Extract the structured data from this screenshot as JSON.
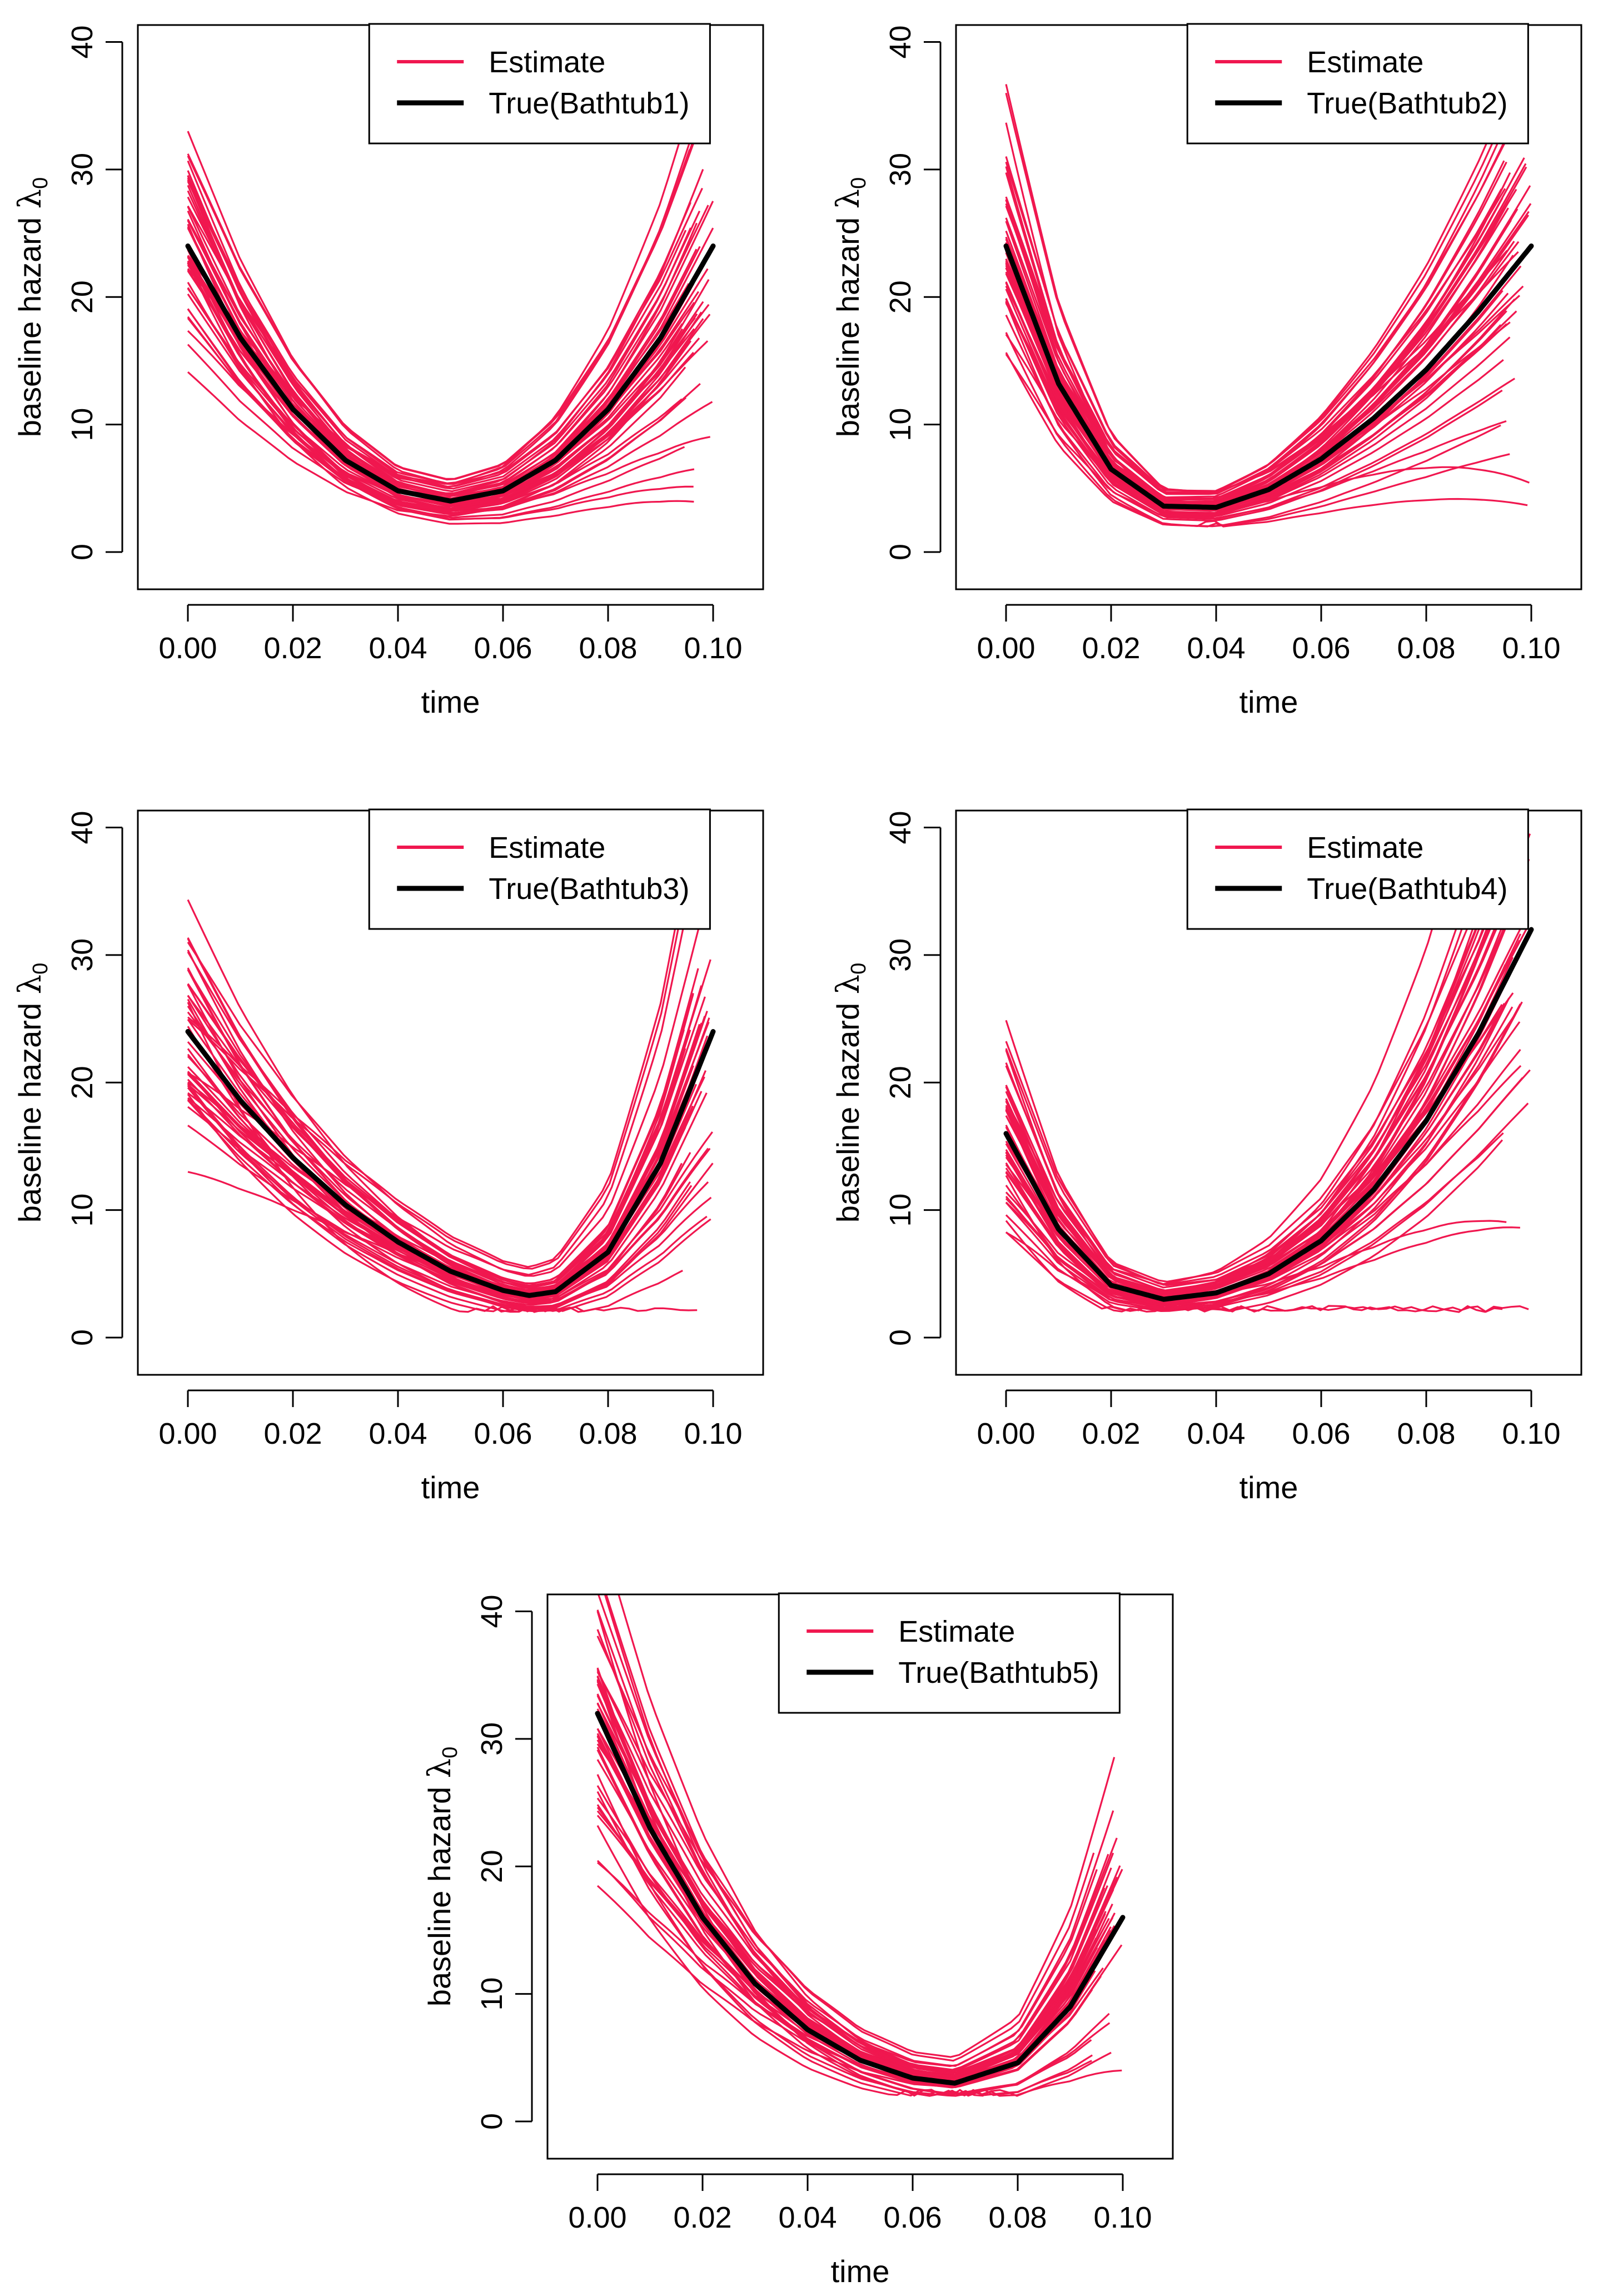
{
  "chart_data": [
    {
      "type": "line",
      "panel": "Bathtub1",
      "xlabel": "time",
      "ylabel": "baseline hazard",
      "ylabel_symbol": "λ",
      "ylabel_subscript": "0",
      "xlim": [
        0.0,
        0.1
      ],
      "ylim": [
        0,
        40
      ],
      "xticks": [
        "0.00",
        "0.02",
        "0.04",
        "0.06",
        "0.08",
        "0.10"
      ],
      "yticks": [
        "0",
        "10",
        "20",
        "30",
        "40"
      ],
      "legend": {
        "position": "top-center",
        "entries": [
          "Estimate",
          "True(Bathtub1)"
        ]
      },
      "true_curve": {
        "x": [
          0,
          0.01,
          0.02,
          0.03,
          0.04,
          0.05,
          0.06,
          0.07,
          0.08,
          0.09,
          0.1
        ],
        "y": [
          24,
          16.8,
          11.2,
          7.2,
          4.8,
          4.0,
          4.8,
          7.2,
          11.2,
          16.8,
          24
        ]
      },
      "n_estimates": 48
    },
    {
      "type": "line",
      "panel": "Bathtub2",
      "xlabel": "time",
      "ylabel": "baseline hazard",
      "ylabel_symbol": "λ",
      "ylabel_subscript": "0",
      "xlim": [
        0.0,
        0.1
      ],
      "ylim": [
        0,
        40
      ],
      "xticks": [
        "0.00",
        "0.02",
        "0.04",
        "0.06",
        "0.08",
        "0.10"
      ],
      "yticks": [
        "0",
        "10",
        "20",
        "30",
        "40"
      ],
      "legend": {
        "position": "top-center",
        "entries": [
          "Estimate",
          "True(Bathtub2)"
        ]
      },
      "true_curve": {
        "x": [
          0,
          0.01,
          0.02,
          0.03,
          0.04,
          0.05,
          0.06,
          0.07,
          0.08,
          0.09,
          0.1
        ],
        "y": [
          24,
          13.2,
          6.5,
          3.6,
          3.5,
          4.9,
          7.3,
          10.5,
          14.3,
          18.9,
          24
        ]
      },
      "n_estimates": 48
    },
    {
      "type": "line",
      "panel": "Bathtub3",
      "xlabel": "time",
      "ylabel": "baseline hazard",
      "ylabel_symbol": "λ",
      "ylabel_subscript": "0",
      "xlim": [
        0.0,
        0.1
      ],
      "ylim": [
        0,
        40
      ],
      "xticks": [
        "0.00",
        "0.02",
        "0.04",
        "0.06",
        "0.08",
        "0.10"
      ],
      "yticks": [
        "0",
        "10",
        "20",
        "30",
        "40"
      ],
      "legend": {
        "position": "top-center",
        "entries": [
          "Estimate",
          "True(Bathtub3)"
        ]
      },
      "true_curve": {
        "x": [
          0,
          0.01,
          0.02,
          0.03,
          0.04,
          0.05,
          0.06,
          0.065,
          0.07,
          0.08,
          0.09,
          0.1
        ],
        "y": [
          24,
          18.6,
          14.1,
          10.4,
          7.5,
          5.2,
          3.7,
          3.3,
          3.6,
          6.7,
          13.7,
          24
        ]
      },
      "n_estimates": 48
    },
    {
      "type": "line",
      "panel": "Bathtub4",
      "xlabel": "time",
      "ylabel": "baseline hazard",
      "ylabel_symbol": "λ",
      "ylabel_subscript": "0",
      "xlim": [
        0.0,
        0.1
      ],
      "ylim": [
        0,
        40
      ],
      "xticks": [
        "0.00",
        "0.02",
        "0.04",
        "0.06",
        "0.08",
        "0.10"
      ],
      "yticks": [
        "0",
        "10",
        "20",
        "30",
        "40"
      ],
      "legend": {
        "position": "top-center",
        "entries": [
          "Estimate",
          "True(Bathtub4)"
        ]
      },
      "true_curve": {
        "x": [
          0,
          0.01,
          0.02,
          0.03,
          0.04,
          0.05,
          0.06,
          0.07,
          0.08,
          0.09,
          0.1
        ],
        "y": [
          16,
          8.5,
          4.1,
          3.0,
          3.5,
          5.0,
          7.6,
          11.6,
          17.0,
          23.9,
          32
        ]
      },
      "n_estimates": 48
    },
    {
      "type": "line",
      "panel": "Bathtub5",
      "xlabel": "time",
      "ylabel": "baseline hazard",
      "ylabel_symbol": "λ",
      "ylabel_subscript": "0",
      "xlim": [
        0.0,
        0.1
      ],
      "ylim": [
        0,
        40
      ],
      "xticks": [
        "0.00",
        "0.02",
        "0.04",
        "0.06",
        "0.08",
        "0.10"
      ],
      "yticks": [
        "0",
        "10",
        "20",
        "30",
        "40"
      ],
      "legend": {
        "position": "top-center",
        "entries": [
          "Estimate",
          "True(Bathtub5)"
        ]
      },
      "true_curve": {
        "x": [
          0,
          0.01,
          0.02,
          0.03,
          0.04,
          0.05,
          0.06,
          0.068,
          0.08,
          0.09,
          0.1
        ],
        "y": [
          32,
          23.0,
          16.0,
          10.8,
          7.2,
          4.8,
          3.4,
          3.0,
          4.6,
          9.0,
          16
        ]
      },
      "n_estimates": 48
    }
  ],
  "colors": {
    "estimate": "#f0174f",
    "true": "#000000",
    "axis": "#000000"
  }
}
